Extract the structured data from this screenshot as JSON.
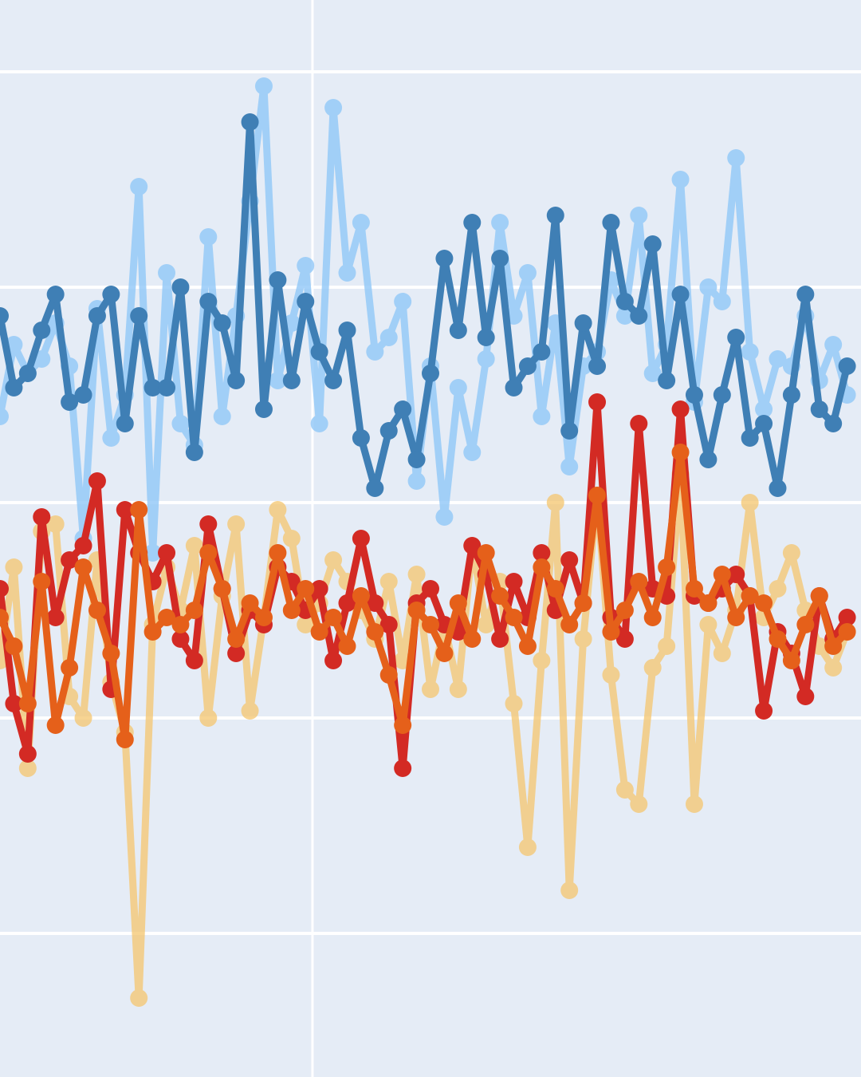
{
  "chart_data": {
    "type": "line",
    "title": "",
    "xlabel": "",
    "ylabel": "",
    "background_color": "#e5ecf6",
    "grid": true,
    "grid_color": "#ffffff",
    "xlim": [
      0,
      62
    ],
    "ylim": [
      -5,
      10
    ],
    "y_gridlines": [
      -3,
      0,
      3,
      6,
      9
    ],
    "x_gridlines": [
      22.5
    ],
    "x": [
      0,
      1,
      2,
      3,
      4,
      5,
      6,
      7,
      8,
      9,
      10,
      11,
      12,
      13,
      14,
      15,
      16,
      17,
      18,
      19,
      20,
      21,
      22,
      23,
      24,
      25,
      26,
      27,
      28,
      29,
      30,
      31,
      32,
      33,
      34,
      35,
      36,
      37,
      38,
      39,
      40,
      41,
      42,
      43,
      44,
      45,
      46,
      47,
      48,
      49,
      50,
      51,
      52,
      53,
      54,
      55,
      56,
      57,
      58,
      59,
      60,
      61
    ],
    "series": [
      {
        "color": "#91c8f8",
        "opacity": 0.8,
        "values": [
          4.2,
          5.2,
          4.8,
          5.0,
          5.5,
          4.9,
          2.5,
          5.7,
          3.9,
          4.5,
          7.4,
          2.3,
          6.2,
          4.1,
          3.8,
          6.7,
          4.2,
          5.6,
          7.2,
          8.8,
          4.7,
          5.5,
          6.3,
          4.1,
          8.5,
          6.2,
          6.9,
          5.1,
          5.3,
          5.8,
          3.3,
          4.9,
          2.8,
          4.6,
          3.7,
          5.0,
          6.9,
          5.6,
          6.2,
          4.2,
          5.5,
          3.5,
          4.9,
          5.1,
          6.1,
          5.6,
          7.0,
          4.8,
          5.2,
          7.5,
          4.4,
          6.0,
          5.8,
          7.8,
          5.1,
          4.3,
          5.0,
          4.9,
          5.6,
          4.7,
          5.2,
          4.5
        ]
      },
      {
        "color": "#3f7fb5",
        "opacity": 1.0,
        "values": [
          5.6,
          4.6,
          4.8,
          5.4,
          5.9,
          4.4,
          4.5,
          5.6,
          5.9,
          4.1,
          5.6,
          4.6,
          4.6,
          6.0,
          3.7,
          5.8,
          5.5,
          4.7,
          8.3,
          4.3,
          6.1,
          4.7,
          5.8,
          5.1,
          4.7,
          5.4,
          3.9,
          3.2,
          4.0,
          4.3,
          3.6,
          4.8,
          6.4,
          5.4,
          6.9,
          5.3,
          6.4,
          4.6,
          4.9,
          5.1,
          7.0,
          4.0,
          5.5,
          4.9,
          6.9,
          5.8,
          5.6,
          6.6,
          4.7,
          5.9,
          4.5,
          3.6,
          4.5,
          5.3,
          3.9,
          4.1,
          3.2,
          4.5,
          5.9,
          4.3,
          4.1,
          4.9
        ]
      },
      {
        "color": "#f5c66e",
        "opacity": 0.75,
        "values": [
          0.8,
          2.1,
          -0.7,
          2.6,
          2.7,
          0.3,
          0.0,
          2.2,
          0.5,
          -0.2,
          -3.9,
          1.3,
          2.1,
          1.5,
          2.4,
          0.0,
          1.7,
          2.7,
          0.1,
          1.4,
          2.9,
          2.5,
          1.3,
          1.6,
          2.2,
          1.9,
          1.5,
          1.1,
          1.9,
          0.8,
          2.0,
          0.4,
          1.3,
          0.4,
          2.4,
          1.3,
          1.9,
          0.2,
          -1.8,
          0.8,
          3.0,
          -2.4,
          1.1,
          3.1,
          0.6,
          -1.0,
          -1.2,
          0.7,
          1.0,
          3.4,
          -1.2,
          1.3,
          0.9,
          1.5,
          3.0,
          1.4,
          1.8,
          2.3,
          1.5,
          1.0,
          0.7,
          1.2
        ]
      },
      {
        "color": "#d32a24",
        "opacity": 1.0,
        "values": [
          1.8,
          0.2,
          -0.5,
          2.8,
          1.4,
          2.2,
          2.4,
          3.3,
          0.4,
          2.9,
          2.3,
          1.9,
          2.3,
          1.1,
          0.8,
          2.7,
          1.8,
          0.9,
          1.5,
          1.3,
          2.1,
          1.9,
          1.5,
          1.8,
          0.8,
          1.6,
          2.5,
          1.6,
          1.3,
          -0.7,
          1.6,
          1.8,
          1.3,
          1.2,
          2.4,
          2.0,
          1.1,
          1.9,
          1.4,
          2.3,
          1.5,
          2.2,
          1.6,
          4.4,
          1.4,
          1.1,
          4.1,
          1.8,
          1.7,
          4.3,
          1.7,
          1.6,
          1.8,
          2.0,
          1.7,
          0.1,
          1.2,
          0.9,
          0.3,
          1.7,
          1.1,
          1.4
        ]
      },
      {
        "color": "#e5601a",
        "opacity": 1.0,
        "values": [
          1.4,
          1.0,
          0.2,
          1.9,
          -0.1,
          0.7,
          2.1,
          1.5,
          0.9,
          -0.3,
          2.9,
          1.2,
          1.4,
          1.3,
          1.5,
          2.3,
          1.8,
          1.1,
          1.6,
          1.4,
          2.3,
          1.5,
          1.8,
          1.2,
          1.4,
          1.0,
          1.7,
          1.2,
          0.6,
          -0.1,
          1.5,
          1.3,
          0.9,
          1.6,
          1.1,
          2.3,
          1.7,
          1.4,
          1.0,
          2.1,
          1.8,
          1.3,
          1.6,
          3.1,
          1.2,
          1.5,
          1.9,
          1.4,
          2.1,
          3.7,
          1.8,
          1.6,
          2.0,
          1.4,
          1.7,
          1.6,
          1.1,
          0.8,
          1.3,
          1.7,
          1.0,
          1.2
        ]
      }
    ]
  }
}
